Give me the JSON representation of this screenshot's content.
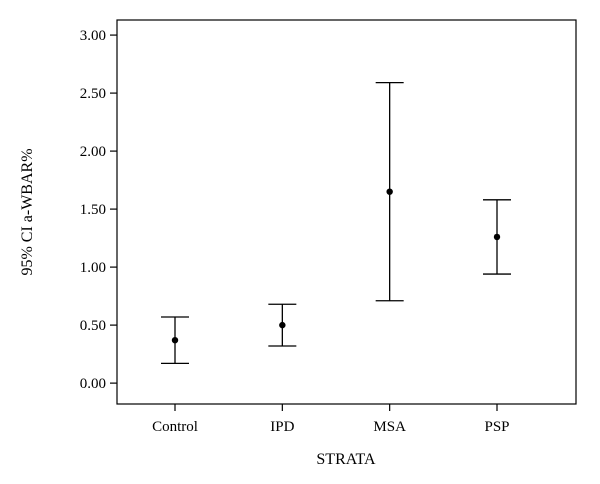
{
  "chart_data": {
    "type": "errorbar",
    "xlabel": "STRATA",
    "ylabel": "95% CI a-WBAR%",
    "categories": [
      "Control",
      "IPD",
      "MSA",
      "PSP"
    ],
    "series": [
      {
        "mean": [
          0.37,
          0.5,
          1.65,
          1.26
        ],
        "lower": [
          0.17,
          0.32,
          0.71,
          0.94
        ],
        "upper": [
          0.57,
          0.68,
          2.59,
          1.58
        ]
      }
    ],
    "ylim": [
      -0.18,
      3.13
    ],
    "yticks": [
      0,
      0.5,
      1.0,
      1.5,
      2.0,
      2.5,
      3.0
    ],
    "ytick_labels": [
      "0.00",
      "0.50",
      "1.00",
      "1.50",
      "2.00",
      "2.50",
      "3.00"
    ],
    "grid": false,
    "legend": "none"
  }
}
